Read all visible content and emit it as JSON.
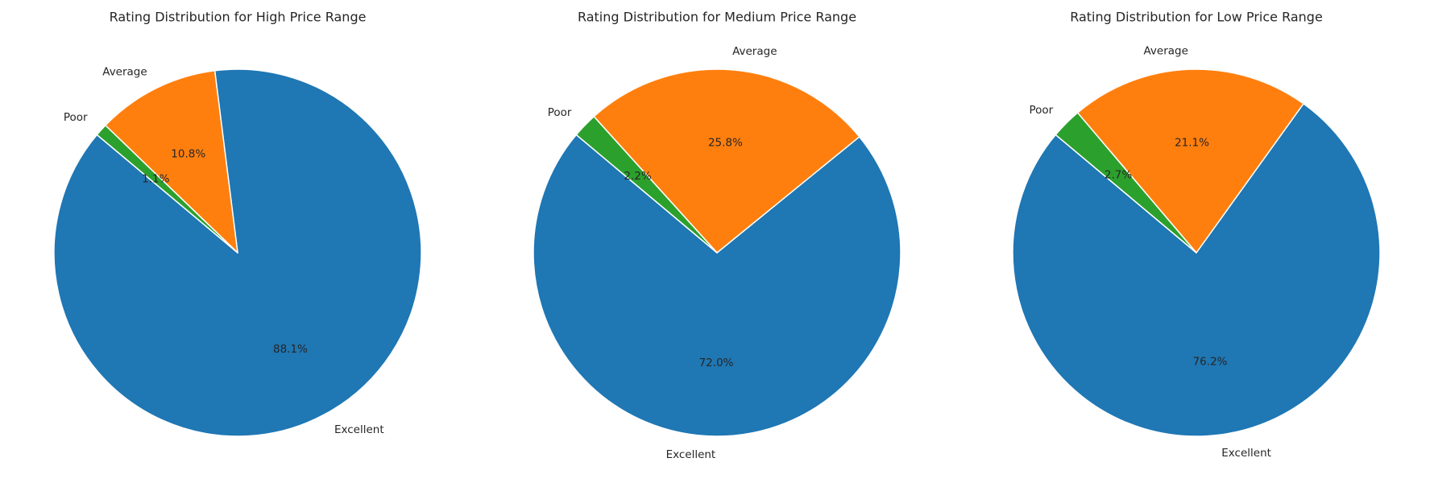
{
  "chart_data": [
    {
      "type": "pie",
      "title": "Rating Distribution for High Price Range",
      "categories": [
        "Excellent",
        "Average",
        "Poor"
      ],
      "values": [
        88.1,
        10.8,
        1.1
      ],
      "value_labels": [
        "88.1%",
        "10.8%",
        "1.1%"
      ],
      "colors": [
        "#1f77b4",
        "#ff7f0e",
        "#2ca02c"
      ]
    },
    {
      "type": "pie",
      "title": "Rating Distribution for Medium Price Range",
      "categories": [
        "Excellent",
        "Average",
        "Poor"
      ],
      "values": [
        72.0,
        25.8,
        2.2
      ],
      "value_labels": [
        "72.0%",
        "25.8%",
        "2.2%"
      ],
      "colors": [
        "#1f77b4",
        "#ff7f0e",
        "#2ca02c"
      ]
    },
    {
      "type": "pie",
      "title": "Rating Distribution for Low Price Range",
      "categories": [
        "Excellent",
        "Average",
        "Poor"
      ],
      "values": [
        76.2,
        21.1,
        2.7
      ],
      "value_labels": [
        "76.2%",
        "21.1%",
        "2.7%"
      ],
      "colors": [
        "#1f77b4",
        "#ff7f0e",
        "#2ca02c"
      ]
    }
  ]
}
